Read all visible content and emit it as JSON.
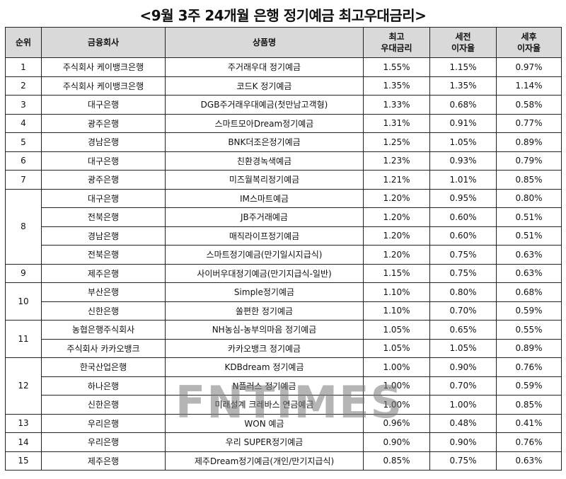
{
  "title": "<9월 3주 24개월 은행 정기예금 최고우대금리>",
  "headers": {
    "rank": "순위",
    "bank": "금융회사",
    "product": "상품명",
    "max_rate": [
      "최고",
      "우대금리"
    ],
    "pre_tax": [
      "세전",
      "이자율"
    ],
    "post_tax": [
      "세후",
      "이자율"
    ]
  },
  "rows": [
    {
      "rank": "1",
      "bank": "주식회사 케이뱅크은행",
      "product": "주거래우대 정기예금",
      "max_rate": "1.55%",
      "pre_tax": "1.15%",
      "post_tax": "0.97%"
    },
    {
      "rank": "2",
      "bank": "주식회사 케이뱅크은행",
      "product": "코드K 정기예금",
      "max_rate": "1.35%",
      "pre_tax": "1.35%",
      "post_tax": "1.14%"
    },
    {
      "rank": "3",
      "bank": "대구은행",
      "product": "DGB주거래우대예금(첫만남고객형)",
      "max_rate": "1.33%",
      "pre_tax": "0.68%",
      "post_tax": "0.58%"
    },
    {
      "rank": "4",
      "bank": "광주은행",
      "product": "스마트모아Dream정기예금",
      "max_rate": "1.31%",
      "pre_tax": "0.91%",
      "post_tax": "0.77%"
    },
    {
      "rank": "5",
      "bank": "경남은행",
      "product": "BNK더조은정기예금",
      "max_rate": "1.25%",
      "pre_tax": "1.05%",
      "post_tax": "0.89%"
    },
    {
      "rank": "6",
      "bank": "대구은행",
      "product": "친환경녹색예금",
      "max_rate": "1.23%",
      "pre_tax": "0.93%",
      "post_tax": "0.79%"
    },
    {
      "rank": "7",
      "bank": "광주은행",
      "product": "미즈월복리정기예금",
      "max_rate": "1.21%",
      "pre_tax": "1.01%",
      "post_tax": "0.85%"
    },
    {
      "rank": "8",
      "bank": "대구은행",
      "product": "IM스마트예금",
      "max_rate": "1.20%",
      "pre_tax": "0.95%",
      "post_tax": "0.80%"
    },
    {
      "rank": "",
      "bank": "전북은행",
      "product": "JB주거래예금",
      "max_rate": "1.20%",
      "pre_tax": "0.60%",
      "post_tax": "0.51%"
    },
    {
      "rank": "",
      "bank": "경남은행",
      "product": "매직라이프정기예금",
      "max_rate": "1.20%",
      "pre_tax": "0.60%",
      "post_tax": "0.51%"
    },
    {
      "rank": "",
      "bank": "전북은행",
      "product": "스마트정기예금(만기일시지급식)",
      "max_rate": "1.20%",
      "pre_tax": "0.75%",
      "post_tax": "0.63%"
    },
    {
      "rank": "9",
      "bank": "제주은행",
      "product": "사이버우대정기예금(만기지급식-일반)",
      "max_rate": "1.15%",
      "pre_tax": "0.75%",
      "post_tax": "0.63%"
    },
    {
      "rank": "10",
      "bank": "부산은행",
      "product": "Simple정기예금",
      "max_rate": "1.10%",
      "pre_tax": "0.80%",
      "post_tax": "0.68%"
    },
    {
      "rank": "",
      "bank": "신한은행",
      "product": "쏠편한 정기예금",
      "max_rate": "1.10%",
      "pre_tax": "0.70%",
      "post_tax": "0.59%"
    },
    {
      "rank": "11",
      "bank": "농협은행주식회사",
      "product": "NH농심-농부의마음 정기예금",
      "max_rate": "1.05%",
      "pre_tax": "0.65%",
      "post_tax": "0.55%"
    },
    {
      "rank": "",
      "bank": "주식회사 카카오뱅크",
      "product": "카카오뱅크 정기예금",
      "max_rate": "1.05%",
      "pre_tax": "1.05%",
      "post_tax": "0.89%"
    },
    {
      "rank": "12",
      "bank": "한국산업은행",
      "product": "KDBdream 정기예금",
      "max_rate": "1.00%",
      "pre_tax": "0.90%",
      "post_tax": "0.76%"
    },
    {
      "rank": "",
      "bank": "하나은행",
      "product": "N플러스 정기예금",
      "max_rate": "1.00%",
      "pre_tax": "0.70%",
      "post_tax": "0.59%"
    },
    {
      "rank": "",
      "bank": "신한은행",
      "product": "미래설계 크레바스 연금예금",
      "max_rate": "1.00%",
      "pre_tax": "1.00%",
      "post_tax": "0.85%"
    },
    {
      "rank": "13",
      "bank": "우리은행",
      "product": "WON 예금",
      "max_rate": "0.96%",
      "pre_tax": "0.48%",
      "post_tax": "0.41%"
    },
    {
      "rank": "14",
      "bank": "우리은행",
      "product": "우리 SUPER정기예금",
      "max_rate": "0.90%",
      "pre_tax": "0.90%",
      "post_tax": "0.76%"
    },
    {
      "rank": "15",
      "bank": "제주은행",
      "product": "제주Dream정기예금(개인/만기지급식)",
      "max_rate": "0.85%",
      "pre_tax": "0.75%",
      "post_tax": "0.63%"
    }
  ],
  "watermark": "FNTIMES"
}
